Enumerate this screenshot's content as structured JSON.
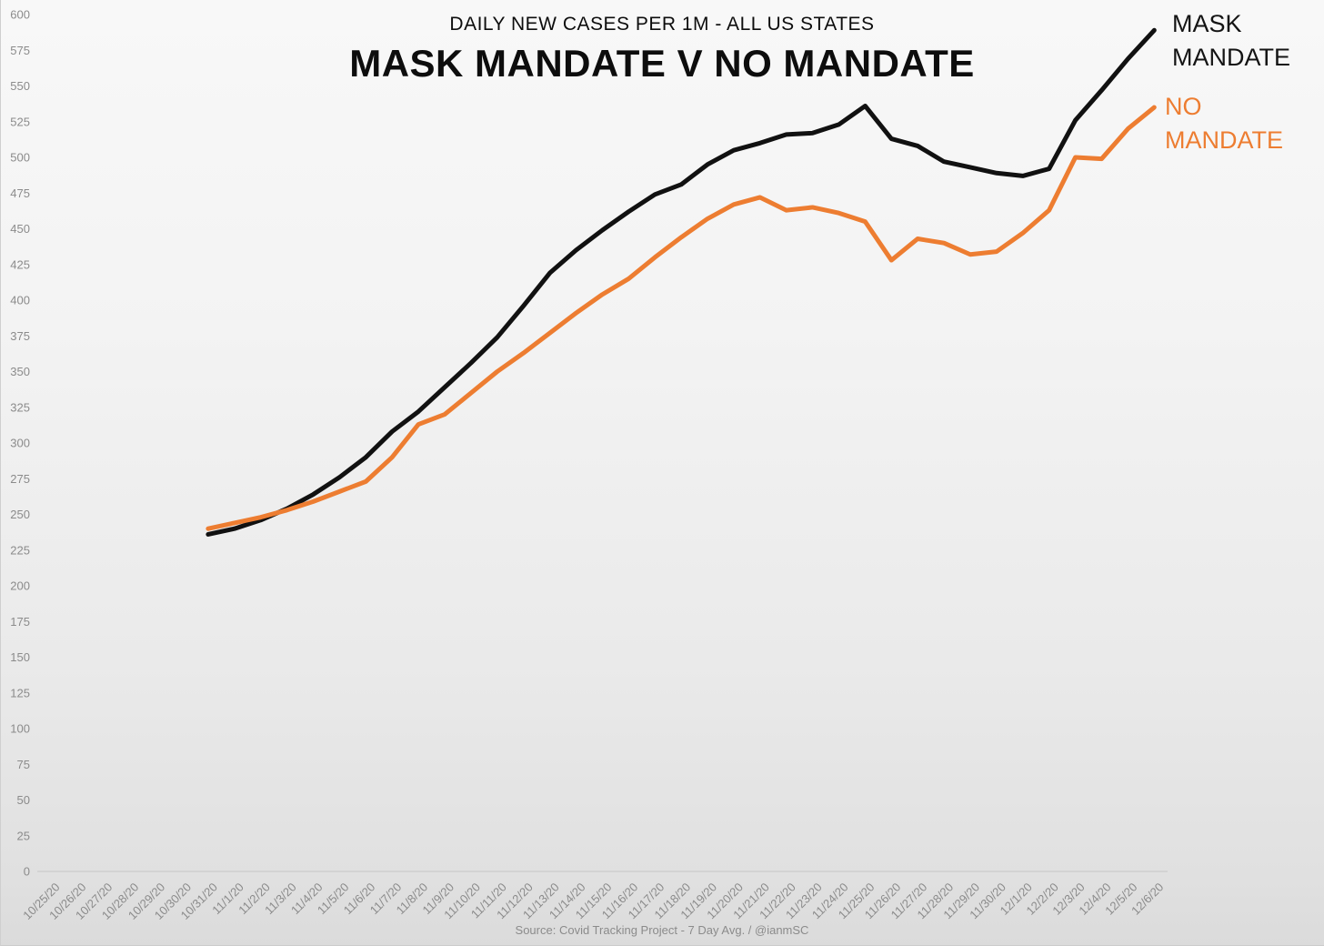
{
  "header": {
    "subtitle": "DAILY NEW CASES PER 1M - ALL US STATES",
    "title": "MASK MANDATE V NO MANDATE"
  },
  "legend": {
    "mask_label": "MASK MANDATE",
    "no_mandate_label": "NO MANDATE"
  },
  "source_text": "Source: Covid Tracking Project - 7 Day Avg. / @ianmSC",
  "colors": {
    "mask_line": "#111111",
    "no_mandate_line": "#ED7D31",
    "axis_text": "#8b8b8b",
    "axis_line": "#c6c6c6"
  },
  "chart_data": {
    "type": "line",
    "title": "MASK MANDATE V NO MANDATE",
    "subtitle": "DAILY NEW CASES PER 1M - ALL US STATES",
    "ylim": [
      0,
      600
    ],
    "ytick_step": 25,
    "grid": "off",
    "legend_position": "right of line ends",
    "x_labels": [
      "10/25/20",
      "10/26/20",
      "10/27/20",
      "10/28/20",
      "10/29/20",
      "10/30/20",
      "10/31/20",
      "11/1/20",
      "11/2/20",
      "11/3/20",
      "11/4/20",
      "11/5/20",
      "11/6/20",
      "11/7/20",
      "11/8/20",
      "11/9/20",
      "11/10/20",
      "11/11/20",
      "11/12/20",
      "11/13/20",
      "11/14/20",
      "11/15/20",
      "11/16/20",
      "11/17/20",
      "11/18/20",
      "11/19/20",
      "11/20/20",
      "11/21/20",
      "11/22/20",
      "11/23/20",
      "11/24/20",
      "11/25/20",
      "11/26/20",
      "11/27/20",
      "11/28/20",
      "11/29/20",
      "11/30/20",
      "12/1/20",
      "12/2/20",
      "12/3/20",
      "12/4/20",
      "12/5/20",
      "12/6/20"
    ],
    "series": [
      {
        "name": "MASK MANDATE",
        "color": "#111111",
        "start_label": "10/31/20",
        "start_index": 6,
        "values": [
          236,
          240,
          246,
          254,
          264,
          276,
          290,
          308,
          322,
          339,
          356,
          374,
          396,
          419,
          435,
          449,
          462,
          474,
          481,
          495,
          505,
          510,
          516,
          517,
          523,
          536,
          513,
          508,
          497,
          493,
          489,
          487,
          492,
          526,
          547,
          569,
          589
        ]
      },
      {
        "name": "NO MANDATE",
        "color": "#ED7D31",
        "start_label": "10/31/20",
        "start_index": 6,
        "values": [
          240,
          244,
          248,
          253,
          259,
          266,
          273,
          290,
          313,
          320,
          335,
          350,
          363,
          377,
          391,
          404,
          415,
          430,
          444,
          457,
          467,
          472,
          463,
          465,
          461,
          455,
          428,
          443,
          440,
          432,
          434,
          447,
          463,
          500,
          499,
          520,
          535
        ]
      }
    ]
  }
}
